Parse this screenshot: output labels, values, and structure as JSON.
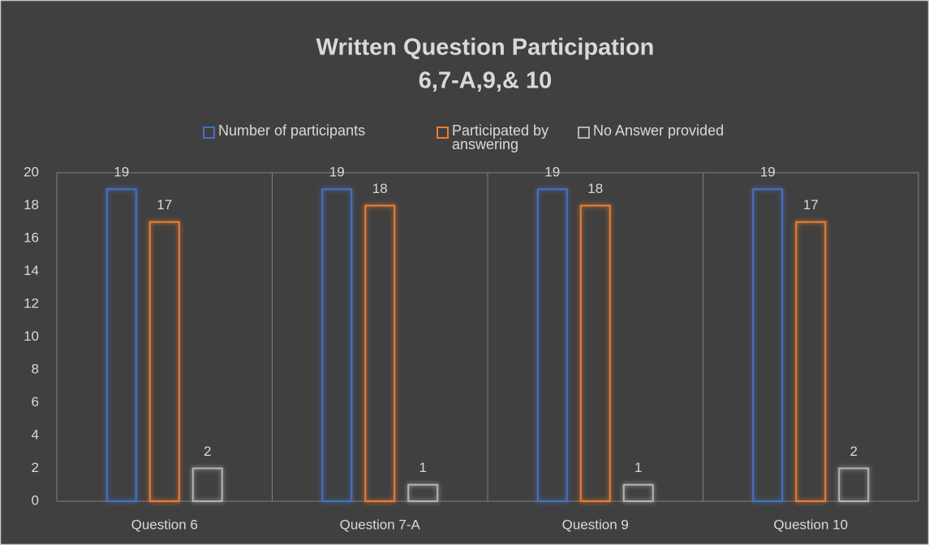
{
  "chart_data": {
    "type": "bar",
    "title": "Written Question Participation",
    "subtitle": "6,7-A,9,& 10",
    "categories": [
      "Question 6",
      "Question 7-A",
      "Question 9",
      "Question 10"
    ],
    "series": [
      {
        "name": "Number of participants",
        "color": "#4472c4",
        "values": [
          19,
          19,
          19,
          19
        ]
      },
      {
        "name": "Participated by answering",
        "color": "#ed7d31",
        "values": [
          17,
          18,
          18,
          17
        ]
      },
      {
        "name": "No Answer provided",
        "color": "#b4b4b4",
        "values": [
          2,
          1,
          1,
          2
        ]
      }
    ],
    "ylim": [
      0,
      20
    ],
    "yticks": [
      0,
      2,
      4,
      6,
      8,
      10,
      12,
      14,
      16,
      18,
      20
    ],
    "legend": "top"
  }
}
